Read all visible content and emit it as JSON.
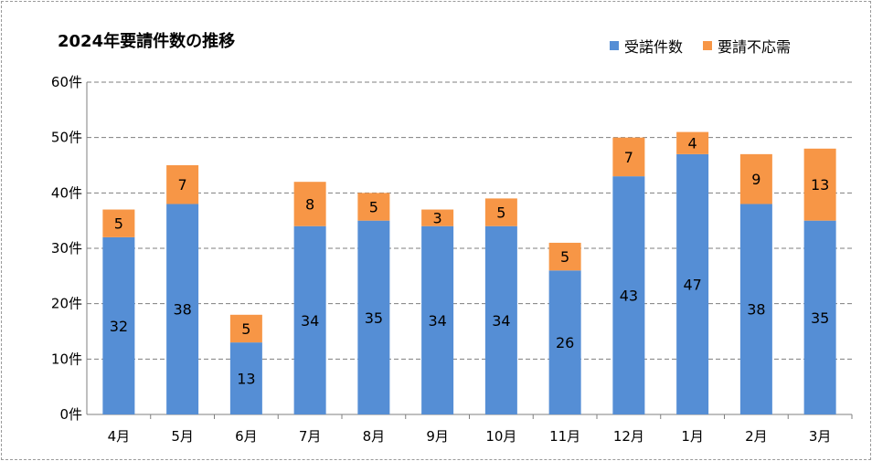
{
  "chart_data": {
    "type": "bar",
    "stacked": true,
    "title": "2024年要請件数の推移",
    "categories": [
      "4月",
      "5月",
      "6月",
      "7月",
      "8月",
      "9月",
      "10月",
      "11月",
      "12月",
      "1月",
      "2月",
      "3月"
    ],
    "series": [
      {
        "name": "受諾件数",
        "color": "#558ed5",
        "values": [
          32,
          38,
          13,
          34,
          35,
          34,
          34,
          26,
          43,
          47,
          38,
          35
        ]
      },
      {
        "name": "要請不応需",
        "color": "#f79646",
        "values": [
          5,
          7,
          5,
          8,
          5,
          3,
          5,
          5,
          7,
          4,
          9,
          13
        ]
      }
    ],
    "ylim": [
      0,
      60
    ],
    "yticks": [
      "0件",
      "10件",
      "20件",
      "30件",
      "40件",
      "50件",
      "60件"
    ],
    "grid": true,
    "legend": "top-right"
  }
}
